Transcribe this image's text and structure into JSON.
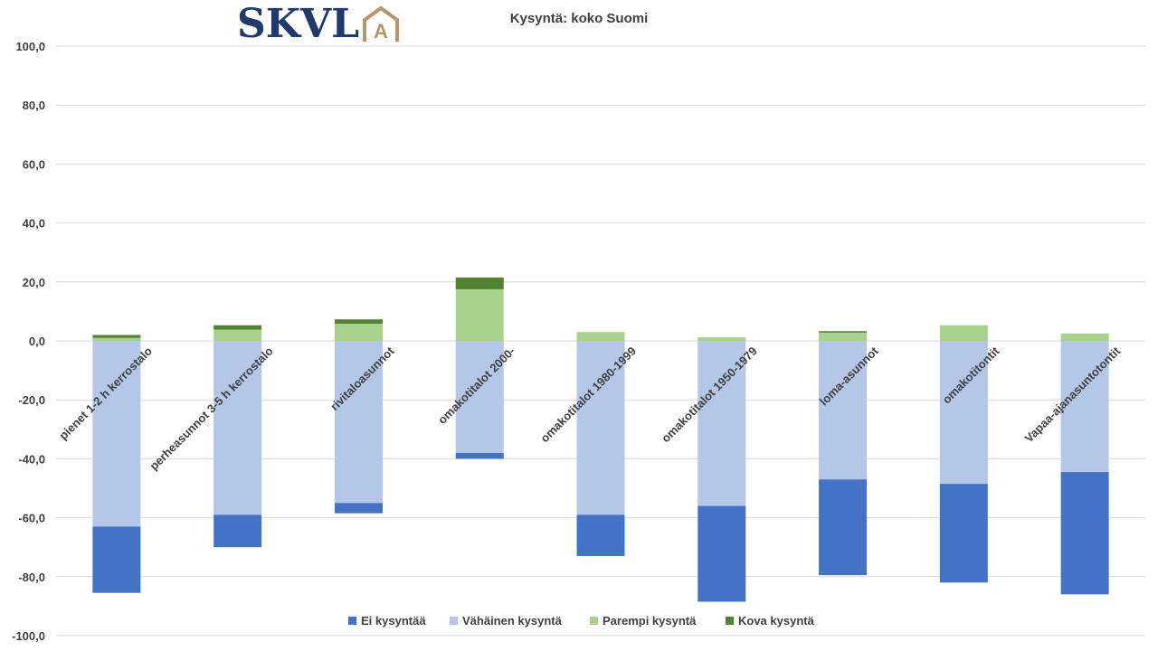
{
  "logo": {
    "text": "SKVL",
    "mark_letter": "A",
    "colors": {
      "text": "#1f3a6b",
      "mark": "#b8956a"
    }
  },
  "chart_data": {
    "type": "bar",
    "stacked": true,
    "title": "Kysyntä: koko Suomi",
    "xlabel": "",
    "ylabel": "",
    "ylim": [
      -100,
      100
    ],
    "ytick_step": 20,
    "ytick_labels": [
      "100,0",
      "80,0",
      "60,0",
      "40,0",
      "20,0",
      "0,0",
      "-20,0",
      "-40,0",
      "-60,0",
      "-80,0",
      "-100,0"
    ],
    "grid": true,
    "legend_position": "bottom",
    "categories": [
      "pienet 1-2 h kerrostalo",
      "perheasunnot 3-5 h kerrostalo",
      "rivitaloasunnot",
      "omakotitalot 2000-",
      "omakotitalot 1980-1999",
      "omakotitalot 1950-1979",
      "loma-asunnot",
      "omakotitontit",
      "Vapaa-ajanasuntotontit"
    ],
    "series": [
      {
        "name": "Ei kysyntää",
        "color": "#4472c4",
        "values": [
          -22.5,
          -11,
          -3.5,
          -2,
          -14,
          -32.5,
          -32.5,
          -33.5,
          -41.5
        ]
      },
      {
        "name": "Vähäinen kysyntä",
        "color": "#b4c7e7",
        "values": [
          -63,
          -59,
          -55,
          -38,
          -59,
          -56,
          -47,
          -48.5,
          -44.5
        ]
      },
      {
        "name": "Parempi kysyntä",
        "color": "#a9d18e",
        "values": [
          1,
          3.8,
          5.8,
          17.5,
          3,
          1.2,
          2.8,
          5.3,
          2.5
        ]
      },
      {
        "name": "Kova kysyntä",
        "color": "#548235",
        "values": [
          1,
          1.5,
          1.5,
          4,
          0,
          0,
          0.5,
          0,
          0
        ]
      }
    ]
  }
}
